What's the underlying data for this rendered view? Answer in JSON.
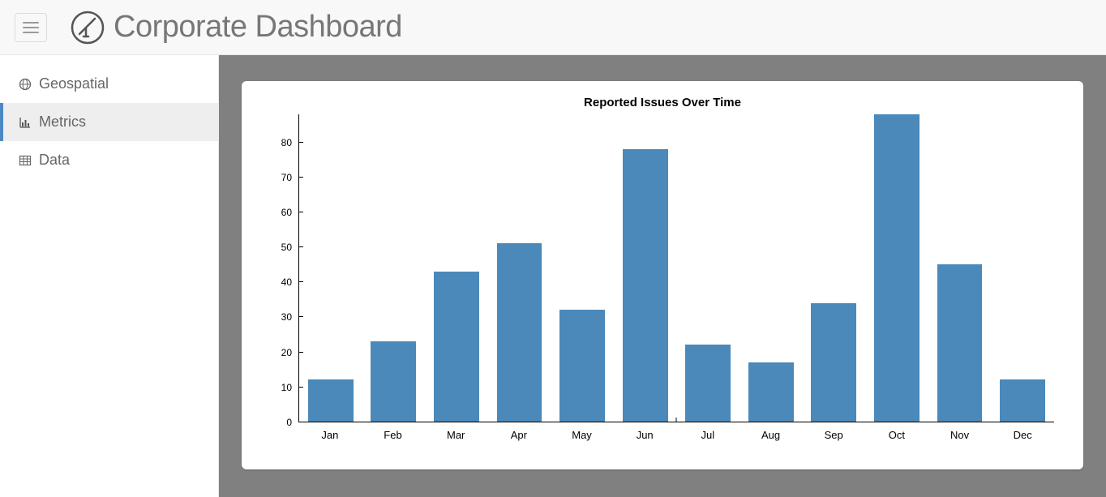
{
  "header": {
    "title": "Corporate Dashboard",
    "icon_name": "telescope-icon"
  },
  "sidebar": {
    "items": [
      {
        "label": "Geospatial",
        "icon": "globe",
        "active": false
      },
      {
        "label": "Metrics",
        "icon": "bar-chart",
        "active": true
      },
      {
        "label": "Data",
        "icon": "table",
        "active": false
      }
    ]
  },
  "issues_chart": {
    "type": "bar",
    "title": "Reported Issues Over Time",
    "title_fontsize": 15,
    "title_fontweight": "bold",
    "categories": [
      "Jan",
      "Feb",
      "Mar",
      "Apr",
      "May",
      "Jun",
      "Jul",
      "Aug",
      "Sep",
      "Oct",
      "Nov",
      "Dec"
    ],
    "values": [
      12,
      23,
      43,
      51,
      32,
      78,
      22,
      17,
      34,
      88,
      45,
      12
    ],
    "bar_color": "#4a89b9",
    "background_color": "#ffffff",
    "axis_color": "#000000",
    "label_fontsize": 13,
    "ylim": [
      0,
      88
    ],
    "yticks": [
      0,
      10,
      20,
      30,
      40,
      50,
      60,
      70,
      80
    ],
    "bar_width": 0.72
  },
  "theme": {
    "topbar_bg": "#f8f8f8",
    "content_bg": "#808080",
    "panel_bg": "#ffffff",
    "sidebar_active_bg": "#eeeeee",
    "sidebar_active_border": "#4a89c4",
    "text_muted": "#777777"
  }
}
